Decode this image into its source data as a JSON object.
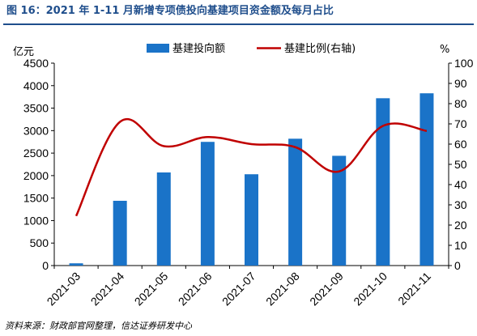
{
  "header": {
    "title": "图 16：2021 年 1-11 月新增专项债投向基建项目资金额及每月占比"
  },
  "footer": {
    "source": "资料来源：财政部官网整理，信达证券研发中心"
  },
  "chart_data": {
    "type": "bar+line",
    "categories": [
      "2021-03",
      "2021-04",
      "2021-05",
      "2021-06",
      "2021-07",
      "2021-08",
      "2021-09",
      "2021-10",
      "2021-11"
    ],
    "series": [
      {
        "name": "基建投向额",
        "type": "bar",
        "axis": "left",
        "color": "#1a73c8",
        "values": [
          50,
          1440,
          2070,
          2750,
          2030,
          2820,
          2440,
          3720,
          3830
        ]
      },
      {
        "name": "基建比例(右轴)",
        "type": "line",
        "axis": "right",
        "color": "#c00000",
        "values": [
          24.5,
          71,
          59,
          63.5,
          60,
          58.5,
          46.5,
          69,
          66.5
        ]
      }
    ],
    "y_left": {
      "label": "亿元",
      "ylim": [
        0,
        4500
      ],
      "ticks": [
        "0",
        "500",
        "1000",
        "1500",
        "2000",
        "2500",
        "3000",
        "3500",
        "4000",
        "4500"
      ]
    },
    "y_right": {
      "label": "%",
      "ylim": [
        0,
        100
      ],
      "ticks": [
        "0",
        "10",
        "20",
        "30",
        "40",
        "50",
        "60",
        "70",
        "80",
        "90",
        "100"
      ]
    },
    "legend_position": "top-center",
    "grid": false
  }
}
